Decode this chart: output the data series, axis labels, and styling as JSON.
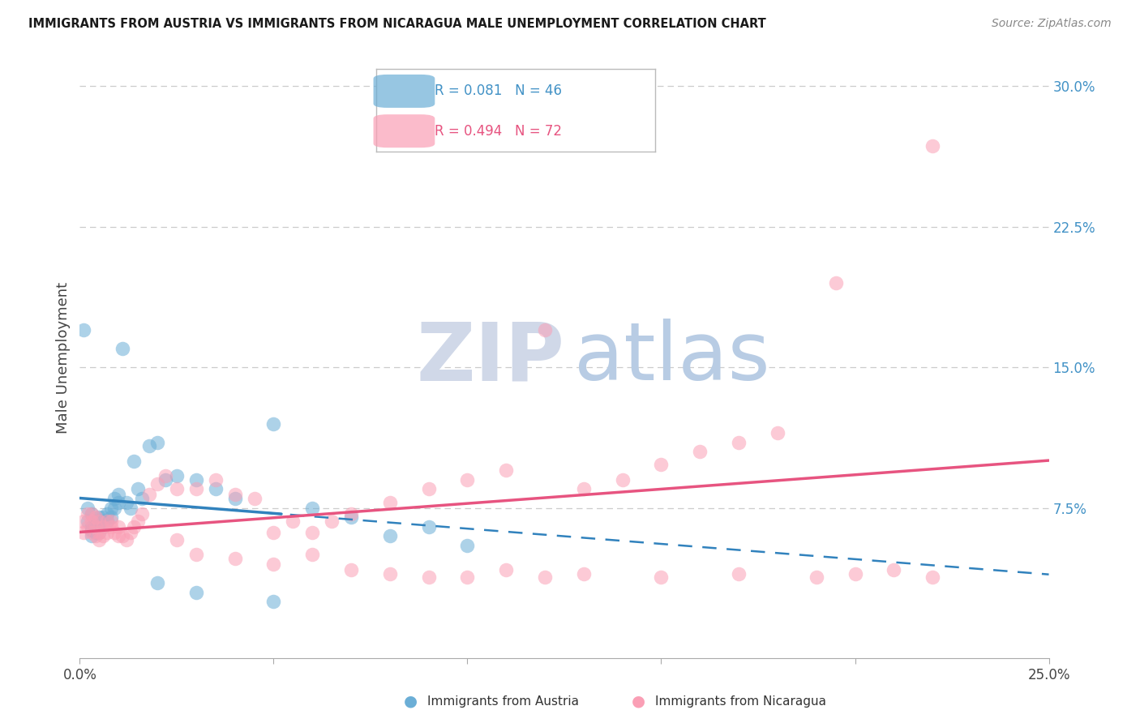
{
  "title": "IMMIGRANTS FROM AUSTRIA VS IMMIGRANTS FROM NICARAGUA MALE UNEMPLOYMENT CORRELATION CHART",
  "source": "Source: ZipAtlas.com",
  "ylabel": "Male Unemployment",
  "xlim": [
    0.0,
    0.25
  ],
  "ylim": [
    -0.005,
    0.315
  ],
  "xtick_positions": [
    0.0,
    0.05,
    0.1,
    0.15,
    0.2,
    0.25
  ],
  "xtick_labels": [
    "0.0%",
    "",
    "",
    "",
    "",
    "25.0%"
  ],
  "ytick_positions_right": [
    0.3,
    0.225,
    0.15,
    0.075
  ],
  "ytick_labels_right": [
    "30.0%",
    "22.5%",
    "15.0%",
    "7.5%"
  ],
  "legend_text1": "R = 0.081   N = 46",
  "legend_text2": "R = 0.494   N = 72",
  "legend_label1": "Immigrants from Austria",
  "legend_label2": "Immigrants from Nicaragua",
  "color_austria": "#6baed6",
  "color_nicaragua": "#fa9fb5",
  "trendline_austria_color": "#3182bd",
  "trendline_nicaragua_color": "#e75480",
  "background_color": "#ffffff",
  "grid_color": "#cccccc",
  "watermark_zip_color": "#d0d8e8",
  "watermark_atlas_color": "#b8cce4",
  "austria_x": [
    0.001,
    0.002,
    0.002,
    0.003,
    0.003,
    0.003,
    0.003,
    0.004,
    0.004,
    0.004,
    0.005,
    0.005,
    0.005,
    0.006,
    0.006,
    0.006,
    0.007,
    0.007,
    0.008,
    0.008,
    0.009,
    0.009,
    0.01,
    0.01,
    0.011,
    0.012,
    0.013,
    0.014,
    0.015,
    0.016,
    0.018,
    0.02,
    0.022,
    0.025,
    0.03,
    0.035,
    0.04,
    0.05,
    0.06,
    0.07,
    0.08,
    0.09,
    0.1,
    0.02,
    0.03,
    0.05
  ],
  "austria_y": [
    0.17,
    0.075,
    0.068,
    0.072,
    0.065,
    0.063,
    0.06,
    0.068,
    0.065,
    0.062,
    0.07,
    0.065,
    0.062,
    0.07,
    0.068,
    0.065,
    0.072,
    0.068,
    0.075,
    0.07,
    0.08,
    0.075,
    0.078,
    0.082,
    0.16,
    0.078,
    0.075,
    0.1,
    0.085,
    0.08,
    0.108,
    0.11,
    0.09,
    0.092,
    0.09,
    0.085,
    0.08,
    0.12,
    0.075,
    0.07,
    0.06,
    0.065,
    0.055,
    0.035,
    0.03,
    0.025
  ],
  "nicaragua_x": [
    0.001,
    0.001,
    0.002,
    0.002,
    0.003,
    0.003,
    0.003,
    0.004,
    0.004,
    0.004,
    0.005,
    0.005,
    0.005,
    0.006,
    0.006,
    0.007,
    0.007,
    0.008,
    0.008,
    0.009,
    0.01,
    0.01,
    0.011,
    0.012,
    0.013,
    0.014,
    0.015,
    0.016,
    0.018,
    0.02,
    0.022,
    0.025,
    0.03,
    0.035,
    0.04,
    0.045,
    0.05,
    0.055,
    0.06,
    0.065,
    0.07,
    0.08,
    0.09,
    0.1,
    0.11,
    0.12,
    0.13,
    0.14,
    0.15,
    0.16,
    0.17,
    0.18,
    0.025,
    0.03,
    0.04,
    0.05,
    0.06,
    0.07,
    0.08,
    0.09,
    0.1,
    0.11,
    0.12,
    0.13,
    0.15,
    0.17,
    0.19,
    0.2,
    0.21,
    0.22,
    0.22,
    0.195
  ],
  "nicaragua_y": [
    0.068,
    0.062,
    0.072,
    0.065,
    0.072,
    0.068,
    0.062,
    0.07,
    0.065,
    0.06,
    0.068,
    0.062,
    0.058,
    0.065,
    0.06,
    0.068,
    0.062,
    0.068,
    0.065,
    0.062,
    0.065,
    0.06,
    0.06,
    0.058,
    0.062,
    0.065,
    0.068,
    0.072,
    0.082,
    0.088,
    0.092,
    0.085,
    0.085,
    0.09,
    0.082,
    0.08,
    0.062,
    0.068,
    0.062,
    0.068,
    0.072,
    0.078,
    0.085,
    0.09,
    0.095,
    0.17,
    0.085,
    0.09,
    0.098,
    0.105,
    0.11,
    0.115,
    0.058,
    0.05,
    0.048,
    0.045,
    0.05,
    0.042,
    0.04,
    0.038,
    0.038,
    0.042,
    0.038,
    0.04,
    0.038,
    0.04,
    0.038,
    0.04,
    0.042,
    0.268,
    0.038,
    0.195
  ]
}
